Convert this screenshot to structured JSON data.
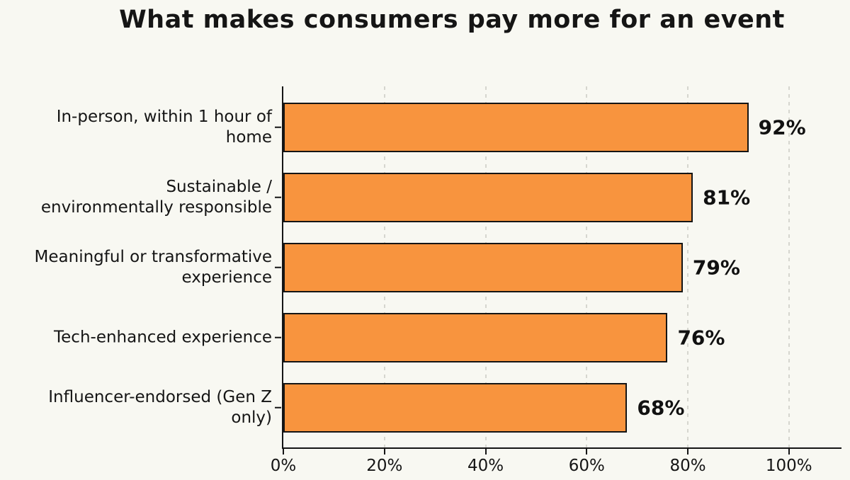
{
  "page": {
    "background_color": "#f8f8f2",
    "text_color": "#151515"
  },
  "chart_data": {
    "type": "bar",
    "orientation": "horizontal",
    "title": "What makes consumers pay more for an event",
    "categories": [
      "In-person, within 1 hour of home",
      "Sustainable / environmentally responsible",
      "Meaningful or transformative experience",
      "Tech-enhanced experience",
      "Influencer-endorsed (Gen Z only)"
    ],
    "category_label_lines": [
      [
        "In-person, within 1 hour of",
        "home"
      ],
      [
        "Sustainable /",
        "environmentally responsible"
      ],
      [
        "Meaningful or transformative",
        "experience"
      ],
      [
        "Tech-enhanced experience"
      ],
      [
        "Influencer-endorsed (Gen Z",
        "only)"
      ]
    ],
    "values": [
      92,
      81,
      79,
      76,
      68
    ],
    "value_labels": [
      "92%",
      "81%",
      "79%",
      "76%",
      "68%"
    ],
    "xlabel": "",
    "ylabel": "",
    "x_tick_values": [
      0,
      20,
      40,
      60,
      80,
      100
    ],
    "x_tick_labels": [
      "0%",
      "20%",
      "40%",
      "60%",
      "80%",
      "100%"
    ],
    "xlim": [
      0,
      110.4
    ],
    "grid": "vertical dashed gridlines at each x tick (except 0), drawn behind bars",
    "legend": "none",
    "bar_color": "#f8943e",
    "bar_edge_color": "#151515",
    "gridline_color": "#d6d6cf",
    "axis_color": "#151515"
  }
}
